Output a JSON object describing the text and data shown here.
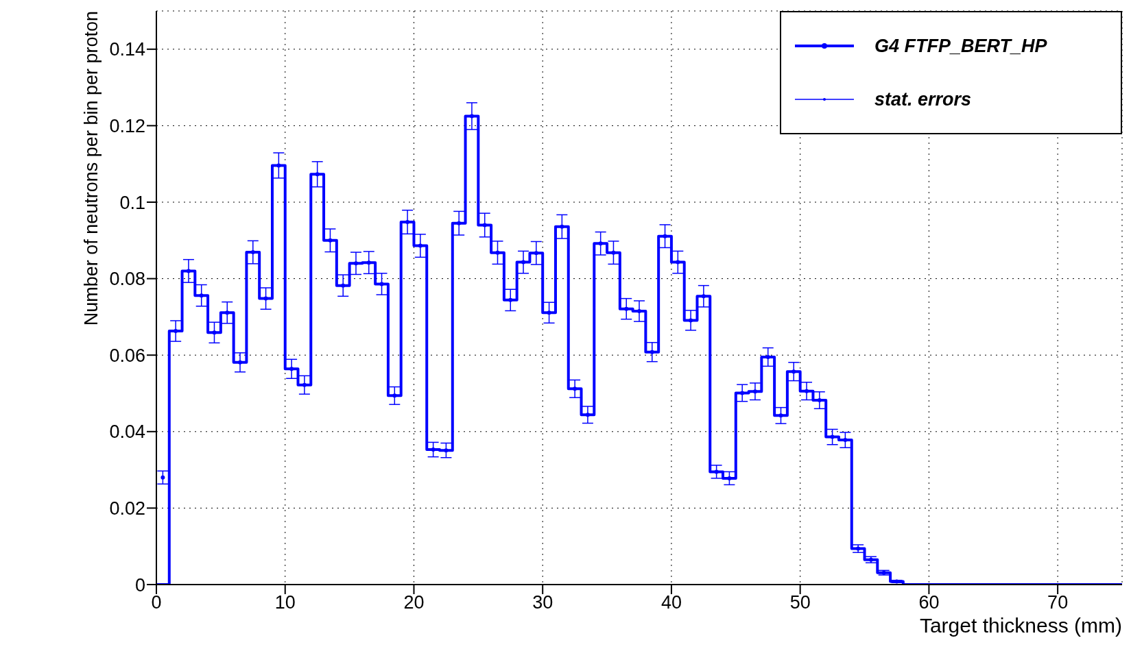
{
  "chart_data": {
    "type": "histogram",
    "xlabel": "Target thickness (mm)",
    "ylabel": "Number of neutrons per bin per proton",
    "bins": [
      0,
      1,
      2,
      3,
      4,
      5,
      6,
      7,
      8,
      9,
      10,
      11,
      12,
      13,
      14,
      15,
      16,
      17,
      18,
      19,
      20,
      21,
      22,
      23,
      24,
      25,
      26,
      27,
      28,
      29,
      30,
      31,
      32,
      33,
      34,
      35,
      36,
      37,
      38,
      39,
      40,
      41,
      42,
      43,
      44,
      45,
      46,
      47,
      48,
      49,
      50,
      51,
      52,
      53,
      54,
      55,
      56,
      57,
      58,
      59,
      60,
      61,
      62,
      63,
      64,
      65,
      66,
      67,
      68,
      69,
      70,
      71,
      72,
      73,
      74,
      75
    ],
    "series": [
      {
        "name": "G4 FTFP_BERT_HP",
        "color": "#0000ff",
        "values": [
          0,
          0.0663,
          0.082,
          0.0756,
          0.0659,
          0.0711,
          0.0581,
          0.0869,
          0.0748,
          0.1096,
          0.0564,
          0.0522,
          0.1073,
          0.09,
          0.0782,
          0.084,
          0.0842,
          0.0786,
          0.0494,
          0.0948,
          0.0886,
          0.0353,
          0.0351,
          0.0945,
          0.1225,
          0.094,
          0.0868,
          0.0744,
          0.0843,
          0.0867,
          0.0711,
          0.0936,
          0.0512,
          0.0444,
          0.0892,
          0.0868,
          0.0721,
          0.0715,
          0.0608,
          0.0911,
          0.0843,
          0.0691,
          0.0754,
          0.0295,
          0.0278,
          0.0501,
          0.0505,
          0.0595,
          0.0442,
          0.0557,
          0.0506,
          0.0482,
          0.0386,
          0.0378,
          0.0094,
          0.0065,
          0.0031,
          0.0008,
          0,
          0,
          0,
          0,
          0,
          0,
          0,
          0,
          0,
          0,
          0,
          0,
          0,
          0,
          0,
          0,
          0
        ]
      },
      {
        "name": "stat. errors",
        "type": "scatter",
        "color": "#0000ff",
        "marker": "circle",
        "x": [
          0.5,
          1.5,
          2.5,
          3.5,
          4.5,
          5.5,
          6.5,
          7.5,
          8.5,
          9.5,
          10.5,
          11.5,
          12.5,
          13.5,
          14.5,
          15.5,
          16.5,
          17.5,
          18.5,
          19.5,
          20.5,
          21.5,
          22.5,
          23.5,
          24.5,
          25.5,
          26.5,
          27.5,
          28.5,
          29.5,
          30.5,
          31.5,
          32.5,
          33.5,
          34.5,
          35.5,
          36.5,
          37.5,
          38.5,
          39.5,
          40.5,
          41.5,
          42.5,
          43.5,
          44.5,
          45.5,
          46.5,
          47.5,
          48.5,
          49.5,
          50.5,
          51.5,
          52.5,
          53.5,
          54.5,
          55.5,
          56.5,
          57.5
        ],
        "values": [
          0.028,
          0.0663,
          0.082,
          0.0756,
          0.0659,
          0.0711,
          0.0581,
          0.0869,
          0.0748,
          0.1096,
          0.0564,
          0.0522,
          0.1073,
          0.09,
          0.0782,
          0.084,
          0.0842,
          0.0786,
          0.0494,
          0.0948,
          0.0886,
          0.0353,
          0.0351,
          0.0945,
          0.1225,
          0.094,
          0.0868,
          0.0744,
          0.0843,
          0.0867,
          0.0711,
          0.0936,
          0.0512,
          0.0444,
          0.0892,
          0.0868,
          0.0721,
          0.0715,
          0.0608,
          0.0911,
          0.0843,
          0.0691,
          0.0754,
          0.0295,
          0.0278,
          0.0501,
          0.0505,
          0.0595,
          0.0442,
          0.0557,
          0.0506,
          0.0482,
          0.0386,
          0.0378,
          0.0094,
          0.0065,
          0.0031,
          0.0008
        ],
        "errors": [
          0.0017,
          0.0027,
          0.003,
          0.0028,
          0.0027,
          0.0028,
          0.0025,
          0.003,
          0.0028,
          0.0033,
          0.0025,
          0.0024,
          0.0033,
          0.003,
          0.0028,
          0.0029,
          0.0029,
          0.0028,
          0.0023,
          0.0031,
          0.003,
          0.0019,
          0.0019,
          0.0031,
          0.0035,
          0.0031,
          0.003,
          0.0028,
          0.0029,
          0.003,
          0.0027,
          0.0031,
          0.0023,
          0.0022,
          0.003,
          0.003,
          0.0027,
          0.0027,
          0.0025,
          0.003,
          0.0029,
          0.0026,
          0.0028,
          0.0017,
          0.0017,
          0.0022,
          0.0022,
          0.0024,
          0.0021,
          0.0024,
          0.0023,
          0.0022,
          0.002,
          0.002,
          0.001,
          0.0008,
          0.0006,
          0.0003
        ]
      }
    ],
    "xlim": [
      0,
      75
    ],
    "xticks": [
      0,
      10,
      20,
      30,
      40,
      50,
      60,
      70
    ],
    "ylim": [
      0,
      0.15
    ],
    "yticks": [
      0,
      0.02,
      0.04,
      0.06,
      0.08,
      0.1,
      0.12,
      0.14
    ],
    "grid": true,
    "legend": "top right",
    "line_style": "solid"
  }
}
